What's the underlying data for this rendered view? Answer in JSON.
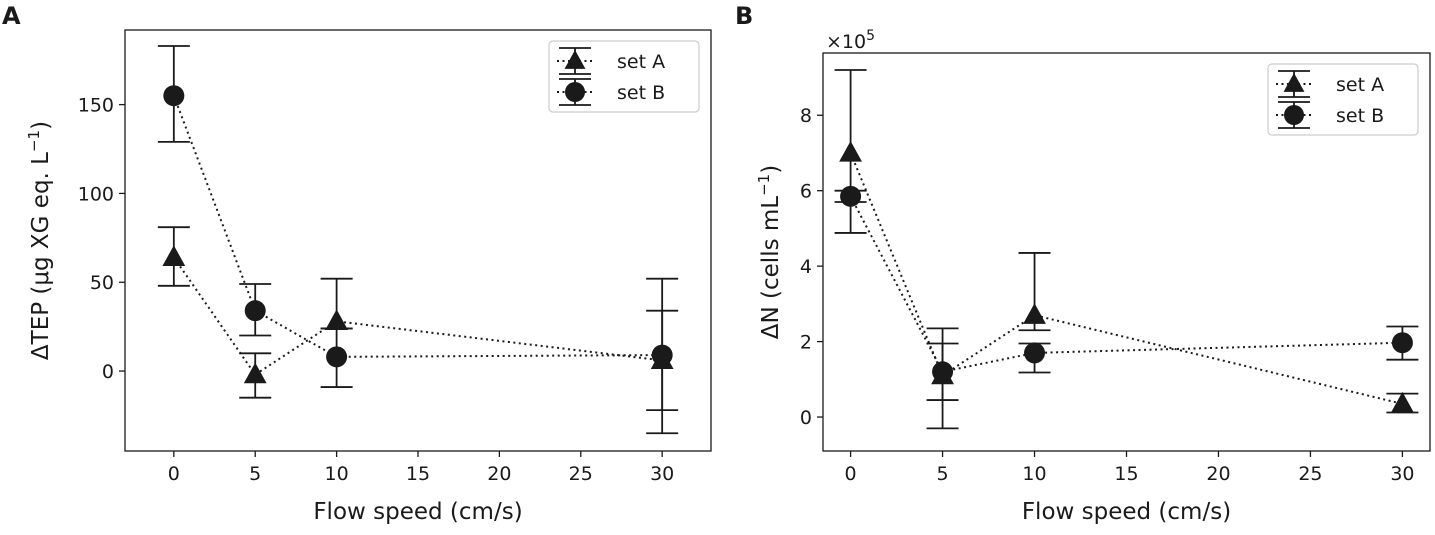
{
  "chart_data": [
    {
      "panel": "A",
      "type": "scatter",
      "title": "",
      "xlabel": "Flow speed (cm/s)",
      "ylabel_prefix": "ΔTEP (μg XG eq. L",
      "ylabel_exp": "−1",
      "ylabel_suffix": ")",
      "xlim": [
        -3,
        33
      ],
      "ylim": [
        -45,
        192
      ],
      "xticks": [
        0,
        5,
        10,
        15,
        20,
        25,
        30
      ],
      "yticks": [
        0,
        50,
        100,
        150
      ],
      "legend": {
        "location": "top-right",
        "entries": [
          "set A",
          "set B"
        ]
      },
      "series": [
        {
          "name": "set A",
          "marker": "triangle",
          "x": [
            0,
            5,
            10,
            30
          ],
          "y": [
            64,
            -2,
            28,
            6
          ],
          "err_low": [
            48,
            -15,
            24,
            -22
          ],
          "err_high": [
            81,
            10,
            52,
            34
          ]
        },
        {
          "name": "set B",
          "marker": "circle",
          "x": [
            0,
            5,
            10,
            30
          ],
          "y": [
            155,
            34,
            8,
            9
          ],
          "err_low": [
            129,
            20,
            -9,
            -35
          ],
          "err_high": [
            183,
            49,
            24,
            52
          ]
        }
      ]
    },
    {
      "panel": "B",
      "type": "scatter",
      "title": "",
      "xlabel": "Flow speed (cm/s)",
      "ylabel_prefix": "ΔN (cells mL",
      "ylabel_exp": "−1",
      "ylabel_suffix": ")",
      "scale_label": "×10",
      "scale_exp": "5",
      "xlim": [
        -1.5,
        31.5
      ],
      "ylim": [
        -0.9,
        9.65
      ],
      "xticks": [
        0,
        5,
        10,
        15,
        20,
        25,
        30
      ],
      "yticks": [
        0,
        2,
        4,
        6,
        8
      ],
      "legend": {
        "location": "top-right",
        "entries": [
          "set A",
          "set B"
        ]
      },
      "series": [
        {
          "name": "set A",
          "marker": "triangle",
          "x": [
            0,
            5,
            10,
            30
          ],
          "y": [
            7.0,
            1.1,
            2.7,
            0.35
          ],
          "err_low": [
            5.7,
            0.45,
            2.3,
            0.12
          ],
          "err_high": [
            9.2,
            1.95,
            4.35,
            0.62
          ]
        },
        {
          "name": "set B",
          "marker": "circle",
          "x": [
            0,
            5,
            10,
            30
          ],
          "y": [
            5.85,
            1.2,
            1.7,
            1.97
          ],
          "err_low": [
            4.88,
            -0.3,
            1.18,
            1.52
          ],
          "err_high": [
            6.0,
            2.35,
            1.95,
            2.4
          ]
        }
      ]
    }
  ]
}
